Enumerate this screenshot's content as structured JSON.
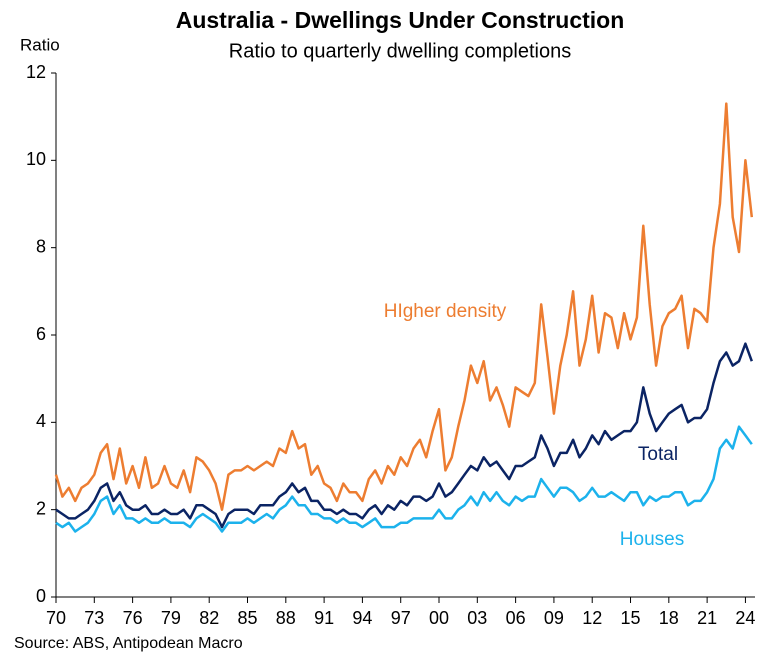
{
  "chart_data": {
    "type": "line",
    "title": "Australia - Dwellings Under Construction",
    "subtitle": "Ratio to quarterly dwelling completions",
    "y_label": "Ratio",
    "source": "Source: ABS, Antipodean Macro",
    "xlim": [
      1970,
      2024.75
    ],
    "xticks": [
      {
        "value": 1970,
        "label": "70"
      },
      {
        "value": 1973,
        "label": "73"
      },
      {
        "value": 1976,
        "label": "76"
      },
      {
        "value": 1979,
        "label": "79"
      },
      {
        "value": 1982,
        "label": "82"
      },
      {
        "value": 1985,
        "label": "85"
      },
      {
        "value": 1988,
        "label": "88"
      },
      {
        "value": 1991,
        "label": "91"
      },
      {
        "value": 1994,
        "label": "94"
      },
      {
        "value": 1997,
        "label": "97"
      },
      {
        "value": 2000,
        "label": "00"
      },
      {
        "value": 2003,
        "label": "03"
      },
      {
        "value": 2006,
        "label": "06"
      },
      {
        "value": 2009,
        "label": "09"
      },
      {
        "value": 2012,
        "label": "12"
      },
      {
        "value": 2015,
        "label": "15"
      },
      {
        "value": 2018,
        "label": "18"
      },
      {
        "value": 2021,
        "label": "21"
      },
      {
        "value": 2024,
        "label": "24"
      }
    ],
    "ylim": [
      0,
      12
    ],
    "yticks": [
      0,
      2,
      4,
      6,
      8,
      10,
      12
    ],
    "grid": false,
    "x": [
      1970,
      1970.5,
      1971,
      1971.5,
      1972,
      1972.5,
      1973,
      1973.5,
      1974,
      1974.5,
      1975,
      1975.5,
      1976,
      1976.5,
      1977,
      1977.5,
      1978,
      1978.5,
      1979,
      1979.5,
      1980,
      1980.5,
      1981,
      1981.5,
      1982,
      1982.5,
      1983,
      1983.5,
      1984,
      1984.5,
      1985,
      1985.5,
      1986,
      1986.5,
      1987,
      1987.5,
      1988,
      1988.5,
      1989,
      1989.5,
      1990,
      1990.5,
      1991,
      1991.5,
      1992,
      1992.5,
      1993,
      1993.5,
      1994,
      1994.5,
      1995,
      1995.5,
      1996,
      1996.5,
      1997,
      1997.5,
      1998,
      1998.5,
      1999,
      1999.5,
      2000,
      2000.5,
      2001,
      2001.5,
      2002,
      2002.5,
      2003,
      2003.5,
      2004,
      2004.5,
      2005,
      2005.5,
      2006,
      2006.5,
      2007,
      2007.5,
      2008,
      2008.5,
      2009,
      2009.5,
      2010,
      2010.5,
      2011,
      2011.5,
      2012,
      2012.5,
      2013,
      2013.5,
      2014,
      2014.5,
      2015,
      2015.5,
      2016,
      2016.5,
      2017,
      2017.5,
      2018,
      2018.5,
      2019,
      2019.5,
      2020,
      2020.5,
      2021,
      2021.5,
      2022,
      2022.5,
      2023,
      2023.5,
      2024,
      2024.5
    ],
    "series": [
      {
        "name": "HIgher density",
        "color": "#ED7D31",
        "values": [
          2.8,
          2.3,
          2.5,
          2.2,
          2.5,
          2.6,
          2.8,
          3.3,
          3.5,
          2.7,
          3.4,
          2.6,
          3.0,
          2.5,
          3.2,
          2.5,
          2.6,
          3.0,
          2.6,
          2.5,
          2.9,
          2.4,
          3.2,
          3.1,
          2.9,
          2.6,
          2.0,
          2.8,
          2.9,
          2.9,
          3.0,
          2.9,
          3.0,
          3.1,
          3.0,
          3.4,
          3.3,
          3.8,
          3.4,
          3.5,
          2.8,
          3.0,
          2.6,
          2.5,
          2.2,
          2.6,
          2.4,
          2.4,
          2.2,
          2.7,
          2.9,
          2.6,
          3.0,
          2.8,
          3.2,
          3.0,
          3.4,
          3.6,
          3.2,
          3.8,
          4.3,
          2.9,
          3.2,
          3.9,
          4.5,
          5.3,
          4.9,
          5.4,
          4.5,
          4.8,
          4.4,
          3.9,
          4.8,
          4.7,
          4.6,
          4.9,
          6.7,
          5.5,
          4.2,
          5.3,
          6.0,
          7.0,
          5.3,
          5.9,
          6.9,
          5.6,
          6.5,
          6.4,
          5.7,
          6.5,
          5.9,
          6.4,
          8.5,
          6.7,
          5.3,
          6.2,
          6.5,
          6.6,
          6.9,
          5.7,
          6.6,
          6.5,
          6.3,
          8.0,
          9.0,
          11.3,
          8.7,
          7.9,
          10.0,
          8.7
        ]
      },
      {
        "name": "Total",
        "color": "#0B2464",
        "values": [
          2.0,
          1.9,
          1.8,
          1.8,
          1.9,
          2.0,
          2.2,
          2.5,
          2.6,
          2.2,
          2.4,
          2.1,
          2.0,
          2.0,
          2.1,
          1.9,
          1.9,
          2.0,
          1.9,
          1.9,
          2.0,
          1.8,
          2.1,
          2.1,
          2.0,
          1.9,
          1.6,
          1.9,
          2.0,
          2.0,
          2.0,
          1.9,
          2.1,
          2.1,
          2.1,
          2.3,
          2.4,
          2.6,
          2.4,
          2.5,
          2.2,
          2.2,
          2.0,
          2.0,
          1.9,
          2.0,
          1.9,
          1.9,
          1.8,
          2.0,
          2.1,
          1.9,
          2.1,
          2.0,
          2.2,
          2.1,
          2.3,
          2.3,
          2.2,
          2.3,
          2.6,
          2.3,
          2.4,
          2.6,
          2.8,
          3.0,
          2.9,
          3.2,
          3.0,
          3.1,
          2.9,
          2.7,
          3.0,
          3.0,
          3.1,
          3.2,
          3.7,
          3.4,
          3.0,
          3.3,
          3.3,
          3.6,
          3.2,
          3.4,
          3.7,
          3.5,
          3.8,
          3.6,
          3.7,
          3.8,
          3.8,
          4.0,
          4.8,
          4.2,
          3.8,
          4.0,
          4.2,
          4.3,
          4.4,
          4.0,
          4.1,
          4.1,
          4.3,
          4.9,
          5.4,
          5.6,
          5.3,
          5.4,
          5.8,
          5.4
        ]
      },
      {
        "name": "Houses",
        "color": "#1CB2EC",
        "values": [
          1.7,
          1.6,
          1.7,
          1.5,
          1.6,
          1.7,
          1.9,
          2.2,
          2.3,
          1.9,
          2.1,
          1.8,
          1.8,
          1.7,
          1.8,
          1.7,
          1.7,
          1.8,
          1.7,
          1.7,
          1.7,
          1.6,
          1.8,
          1.9,
          1.8,
          1.7,
          1.5,
          1.7,
          1.7,
          1.7,
          1.8,
          1.7,
          1.8,
          1.9,
          1.8,
          2.0,
          2.1,
          2.3,
          2.1,
          2.1,
          1.9,
          1.9,
          1.8,
          1.8,
          1.7,
          1.8,
          1.7,
          1.7,
          1.6,
          1.7,
          1.8,
          1.6,
          1.6,
          1.6,
          1.7,
          1.7,
          1.8,
          1.8,
          1.8,
          1.8,
          2.0,
          1.8,
          1.8,
          2.0,
          2.1,
          2.3,
          2.1,
          2.4,
          2.2,
          2.4,
          2.2,
          2.1,
          2.3,
          2.2,
          2.3,
          2.3,
          2.7,
          2.5,
          2.3,
          2.5,
          2.5,
          2.4,
          2.2,
          2.3,
          2.5,
          2.3,
          2.3,
          2.4,
          2.3,
          2.2,
          2.4,
          2.4,
          2.1,
          2.3,
          2.2,
          2.3,
          2.3,
          2.4,
          2.4,
          2.1,
          2.2,
          2.2,
          2.4,
          2.7,
          3.4,
          3.6,
          3.4,
          3.9,
          3.7,
          3.5
        ]
      }
    ]
  }
}
